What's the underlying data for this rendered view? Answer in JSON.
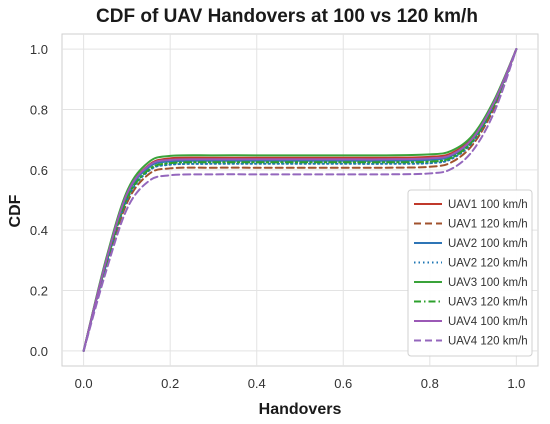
{
  "chart_data": {
    "type": "line",
    "title": "CDF of UAV Handovers at 100 vs 120 km/h",
    "xlabel": "Handovers",
    "ylabel": "CDF",
    "xlim": [
      -0.05,
      1.05
    ],
    "ylim": [
      -0.05,
      1.05
    ],
    "xticks": [
      "0.0",
      "0.2",
      "0.4",
      "0.6",
      "0.8",
      "1.0"
    ],
    "yticks": [
      "0.0",
      "0.2",
      "0.4",
      "0.6",
      "0.8",
      "1.0"
    ],
    "grid": true,
    "legend_position": "lower-right",
    "x": [
      0.0,
      0.05,
      0.1,
      0.15,
      0.2,
      0.3,
      0.4,
      0.5,
      0.6,
      0.7,
      0.8,
      0.85,
      0.9,
      0.95,
      1.0
    ],
    "series": [
      {
        "name": "UAV1 100 km/h",
        "color": "#c0392b",
        "style": "solid",
        "values": [
          0.0,
          0.29,
          0.52,
          0.615,
          0.638,
          0.64,
          0.64,
          0.64,
          0.64,
          0.64,
          0.643,
          0.655,
          0.71,
          0.83,
          1.0
        ]
      },
      {
        "name": "UAV1 120 km/h",
        "color": "#a0522d",
        "style": "dashed",
        "values": [
          0.0,
          0.27,
          0.49,
          0.585,
          0.605,
          0.607,
          0.607,
          0.607,
          0.607,
          0.607,
          0.61,
          0.625,
          0.685,
          0.81,
          1.0
        ]
      },
      {
        "name": "UAV2 100 km/h",
        "color": "#2e75b6",
        "style": "solid",
        "values": [
          0.0,
          0.285,
          0.515,
          0.608,
          0.628,
          0.63,
          0.63,
          0.63,
          0.63,
          0.63,
          0.633,
          0.646,
          0.702,
          0.825,
          1.0
        ]
      },
      {
        "name": "UAV2 120 km/h",
        "color": "#1f77b4",
        "style": "dotted",
        "values": [
          0.0,
          0.275,
          0.5,
          0.596,
          0.617,
          0.62,
          0.62,
          0.62,
          0.62,
          0.62,
          0.622,
          0.636,
          0.694,
          0.818,
          1.0
        ]
      },
      {
        "name": "UAV3 100 km/h",
        "color": "#3aa33a",
        "style": "solid",
        "values": [
          0.0,
          0.295,
          0.528,
          0.625,
          0.646,
          0.648,
          0.648,
          0.648,
          0.648,
          0.648,
          0.651,
          0.663,
          0.716,
          0.835,
          1.0
        ]
      },
      {
        "name": "UAV3 120 km/h",
        "color": "#2ca02c",
        "style": "dashdot",
        "values": [
          0.0,
          0.28,
          0.505,
          0.6,
          0.622,
          0.625,
          0.625,
          0.625,
          0.625,
          0.625,
          0.627,
          0.64,
          0.698,
          0.82,
          1.0
        ]
      },
      {
        "name": "UAV4 100 km/h",
        "color": "#9b59b6",
        "style": "solid",
        "values": [
          0.0,
          0.288,
          0.52,
          0.613,
          0.633,
          0.635,
          0.635,
          0.635,
          0.635,
          0.635,
          0.638,
          0.65,
          0.706,
          0.828,
          1.0
        ]
      },
      {
        "name": "UAV4 120 km/h",
        "color": "#9467bd",
        "style": "dashed",
        "values": [
          0.0,
          0.255,
          0.47,
          0.562,
          0.582,
          0.585,
          0.585,
          0.585,
          0.585,
          0.585,
          0.588,
          0.603,
          0.665,
          0.795,
          1.0
        ]
      }
    ]
  }
}
